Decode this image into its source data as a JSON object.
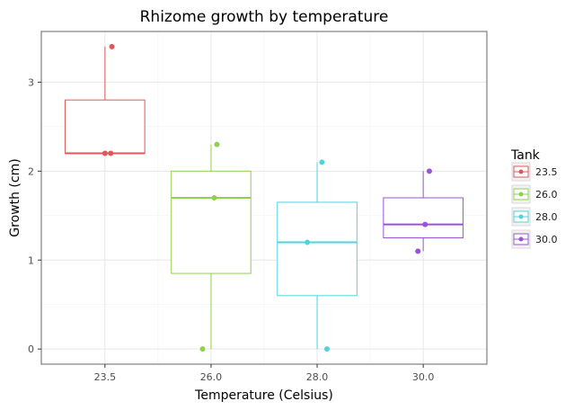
{
  "chart_data": {
    "type": "boxplot",
    "title": "Rhizome growth by temperature",
    "xlabel": "Temperature (Celsius)",
    "ylabel": "Growth (cm)",
    "ylim": [
      -0.17,
      3.57
    ],
    "yticks": [
      0,
      1,
      2,
      3
    ],
    "grid": true,
    "legend_position": "right",
    "legend_title": "Tank",
    "categories": [
      "23.5",
      "26.0",
      "28.0",
      "30.0"
    ],
    "series": [
      {
        "name": "23.5",
        "color": "#e15759",
        "stats": {
          "min": 2.2,
          "q1": 2.2,
          "median": 2.2,
          "q3": 2.8,
          "max": 3.4
        },
        "points": [
          {
            "x_offset": 0.0,
            "y": 2.2
          },
          {
            "x_offset": 0.22,
            "y": 2.2
          },
          {
            "x_offset": 0.26,
            "y": 3.4
          }
        ]
      },
      {
        "name": "26.0",
        "color": "#8fd14f",
        "stats": {
          "min": 0.0,
          "q1": 0.85,
          "median": 1.7,
          "q3": 2.0,
          "max": 2.3
        },
        "points": [
          {
            "x_offset": -0.32,
            "y": 0.0
          },
          {
            "x_offset": 0.12,
            "y": 1.7
          },
          {
            "x_offset": 0.22,
            "y": 2.3
          }
        ]
      },
      {
        "name": "28.0",
        "color": "#4fd3df",
        "stats": {
          "min": 0.0,
          "q1": 0.6,
          "median": 1.2,
          "q3": 1.65,
          "max": 2.1
        },
        "points": [
          {
            "x_offset": -0.37,
            "y": 1.2
          },
          {
            "x_offset": 0.18,
            "y": 2.1
          },
          {
            "x_offset": 0.37,
            "y": 0.0
          }
        ]
      },
      {
        "name": "30.0",
        "color": "#9b52db",
        "stats": {
          "min": 1.1,
          "q1": 1.25,
          "median": 1.4,
          "q3": 1.7,
          "max": 2.0
        },
        "points": [
          {
            "x_offset": -0.2,
            "y": 1.1
          },
          {
            "x_offset": 0.07,
            "y": 1.4
          },
          {
            "x_offset": 0.23,
            "y": 2.0
          }
        ]
      }
    ]
  }
}
